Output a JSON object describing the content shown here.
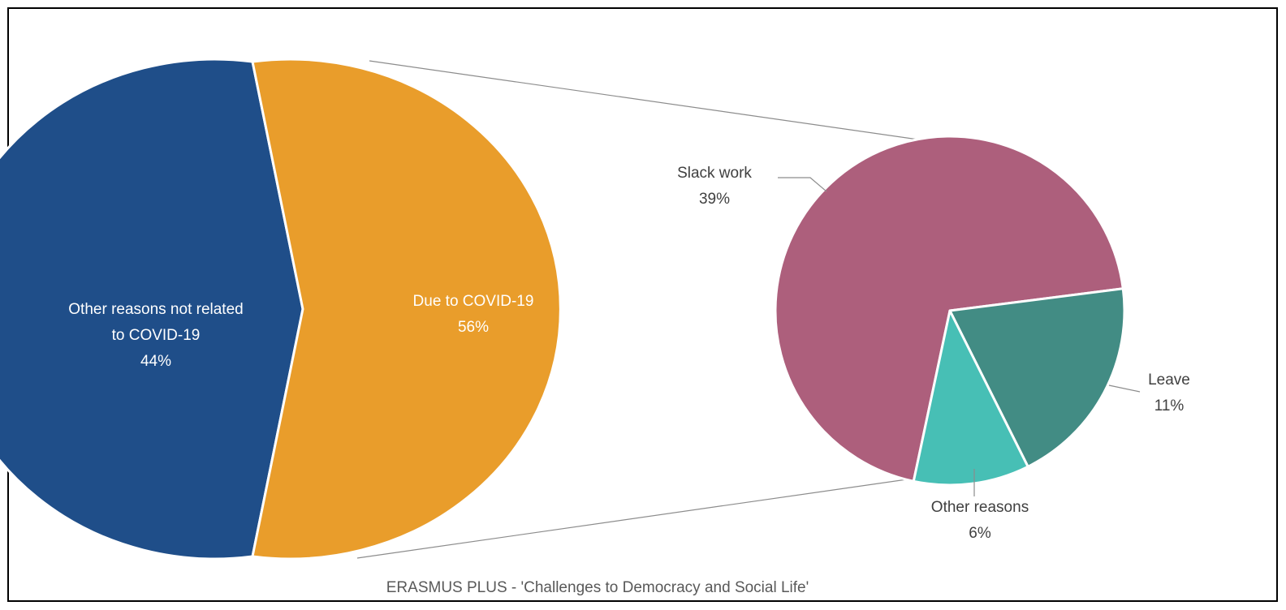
{
  "footer_text": "ERASMUS PLUS - 'Challenges to Democracy and Social Life'",
  "chart_data": {
    "type": "pie",
    "title": "",
    "charts": [
      {
        "slices": [
          {
            "name_lines": [
              "Other reasons not related",
              "to COVID-19"
            ],
            "value_label": "44%",
            "value": 44,
            "color": "#1f4e89"
          },
          {
            "name_lines": [
              "Due to COVID-19"
            ],
            "value_label": "56%",
            "value": 56,
            "color": "#e99d2b"
          }
        ]
      },
      {
        "breakdown_of": "Due to COVID-19",
        "slices": [
          {
            "name_lines": [
              "Slack work"
            ],
            "value_label": "39%",
            "value": 39,
            "color": "#ad5f7c"
          },
          {
            "name_lines": [
              "Leave"
            ],
            "value_label": "11%",
            "value": 11,
            "color": "#428c84"
          },
          {
            "name_lines": [
              "Other reasons"
            ],
            "value_label": "6%",
            "value": 6,
            "color": "#47bfb5"
          }
        ]
      }
    ]
  }
}
